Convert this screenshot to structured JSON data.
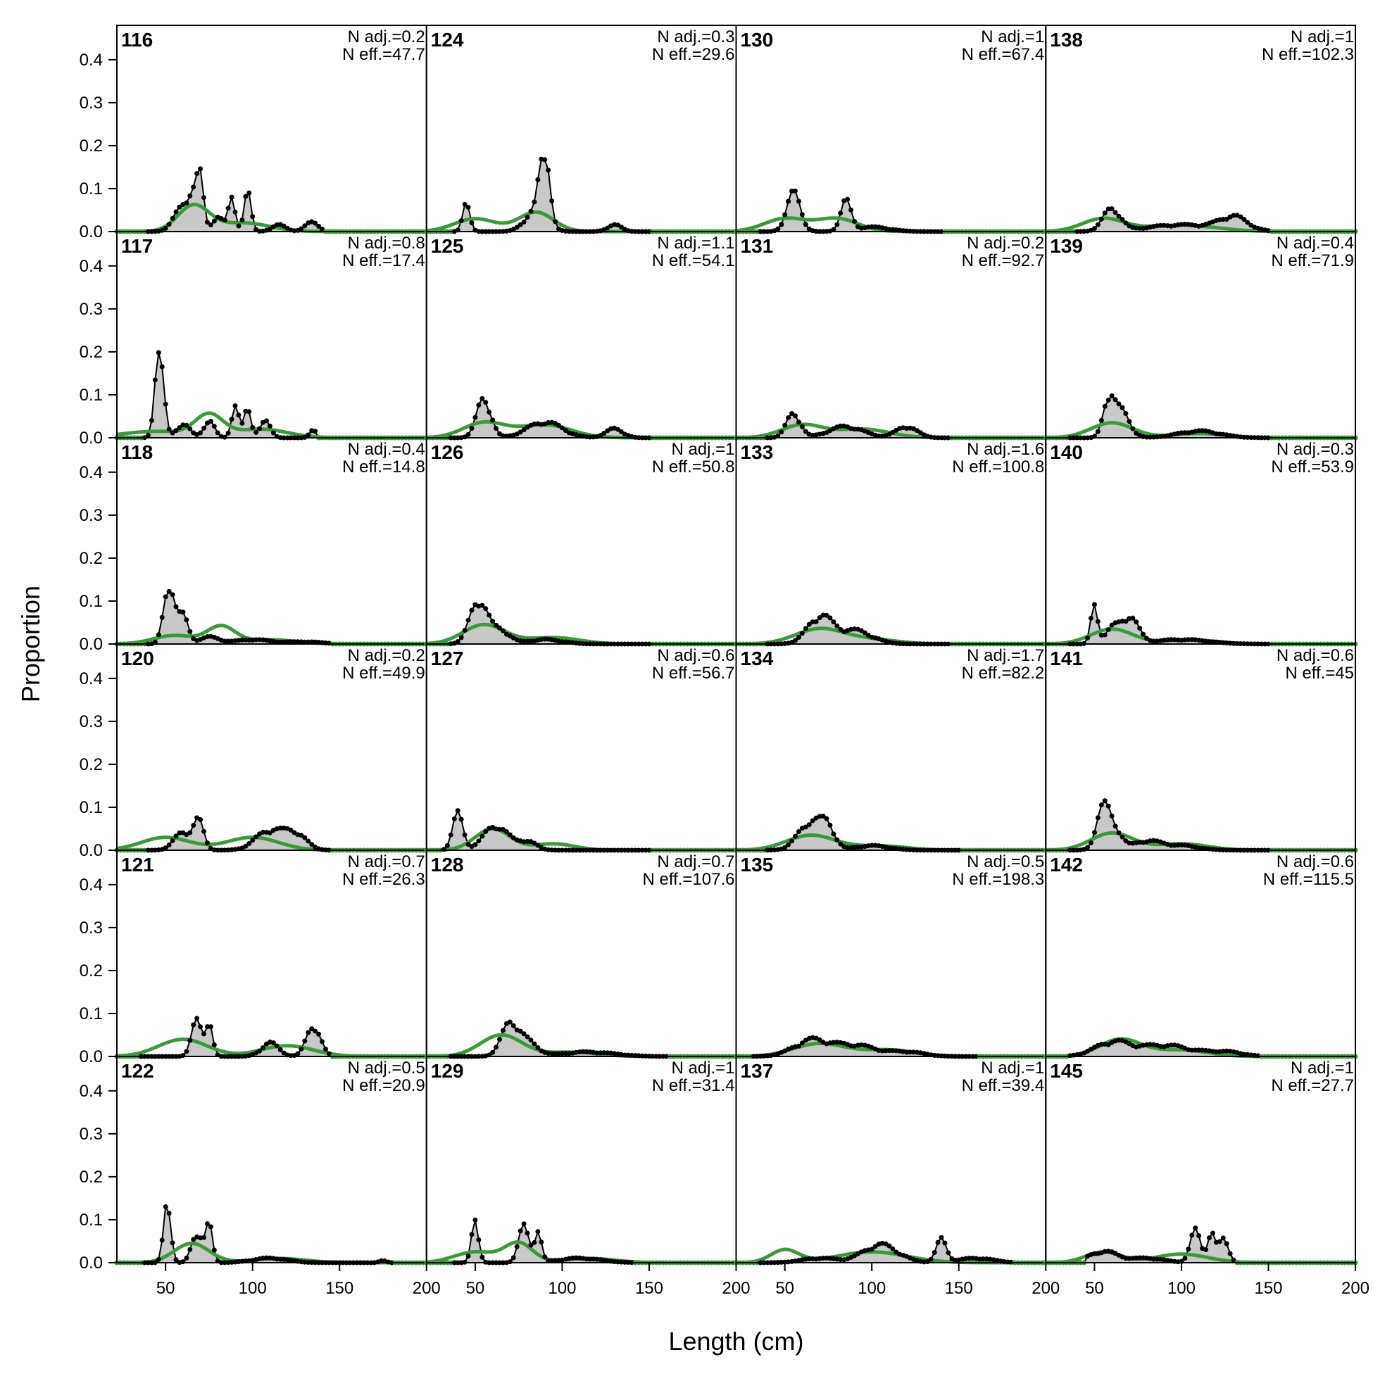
{
  "colors": {
    "observed_fill": "#c8c8c8",
    "observed_line": "#000000",
    "expected_line": "#3a9a3a",
    "zero_line": "#b4b4b4",
    "frame": "#000000"
  },
  "chart_data": {
    "type": "area",
    "description_of_series": [
      "observed",
      "expected"
    ],
    "xlabel": "Length (cm)",
    "ylabel": "Proportion",
    "xlim": [
      22,
      200
    ],
    "ylim": [
      0,
      0.48
    ],
    "x_ticks": [
      50,
      100,
      150,
      200
    ],
    "y_ticks": [
      0.0,
      0.1,
      0.2,
      0.3,
      0.4
    ],
    "x_tick_labels": [
      "50",
      "100",
      "150",
      "200"
    ],
    "y_tick_labels": [
      "0.0",
      "0.1",
      "0.2",
      "0.3",
      "0.4"
    ],
    "grid": false,
    "layout": {
      "columns": 4,
      "rows": 6,
      "order": "column-major"
    },
    "panels": [
      {
        "label": "116",
        "n_adj": "N adj.=0.2",
        "n_eff": "N eff.=47.7",
        "observed_peaks": [
          [
            60,
            0.055,
            5
          ],
          [
            66,
            0.06,
            3
          ],
          [
            70,
            0.095,
            2
          ],
          [
            80,
            0.035,
            3
          ],
          [
            88,
            0.07,
            2
          ],
          [
            97,
            0.095,
            2
          ],
          [
            115,
            0.015,
            4
          ],
          [
            134,
            0.02,
            4
          ]
        ],
        "observed_range": [
          40,
          140
        ],
        "expected_peaks": [
          [
            66,
            0.06,
            9
          ],
          [
            95,
            0.02,
            15
          ]
        ]
      },
      {
        "label": "117",
        "n_adj": "N adj.=0.8",
        "n_eff": "N eff.=17.4",
        "observed_peaks": [
          [
            45,
            0.14,
            2
          ],
          [
            48,
            0.1,
            2
          ],
          [
            60,
            0.03,
            4
          ],
          [
            75,
            0.04,
            3
          ],
          [
            90,
            0.08,
            2
          ],
          [
            97,
            0.06,
            2
          ],
          [
            107,
            0.04,
            3
          ],
          [
            135,
            0.02,
            2
          ]
        ],
        "observed_range": [
          38,
          136
        ],
        "expected_peaks": [
          [
            45,
            0.015,
            20
          ],
          [
            75,
            0.05,
            8
          ],
          [
            105,
            0.02,
            15
          ]
        ]
      },
      {
        "label": "118",
        "n_adj": "N adj.=0.4",
        "n_eff": "N eff.=14.8",
        "observed_peaks": [
          [
            52,
            0.14,
            3
          ],
          [
            60,
            0.06,
            3
          ],
          [
            75,
            0.015,
            6
          ],
          [
            100,
            0.01,
            10
          ],
          [
            130,
            0.005,
            10
          ]
        ],
        "observed_range": [
          40,
          145
        ],
        "expected_peaks": [
          [
            55,
            0.02,
            12
          ],
          [
            82,
            0.04,
            8
          ],
          [
            110,
            0.01,
            15
          ]
        ]
      },
      {
        "label": "120",
        "n_adj": "N adj.=0.2",
        "n_eff": "N eff.=49.9",
        "observed_peaks": [
          [
            60,
            0.04,
            5
          ],
          [
            69,
            0.06,
            3
          ],
          [
            110,
            0.045,
            8
          ],
          [
            125,
            0.035,
            6
          ]
        ],
        "observed_range": [
          40,
          145
        ],
        "expected_peaks": [
          [
            50,
            0.03,
            14
          ],
          [
            100,
            0.03,
            15
          ]
        ]
      },
      {
        "label": "121",
        "n_adj": "N adj.=0.7",
        "n_eff": "N eff.=26.3",
        "observed_peaks": [
          [
            68,
            0.08,
            3
          ],
          [
            75,
            0.075,
            2
          ],
          [
            110,
            0.03,
            5
          ],
          [
            135,
            0.07,
            4
          ]
        ],
        "observed_range": [
          36,
          145
        ],
        "expected_peaks": [
          [
            60,
            0.04,
            14
          ],
          [
            120,
            0.025,
            15
          ]
        ]
      },
      {
        "label": "122",
        "n_adj": "N adj.=0.5",
        "n_eff": "N eff.=20.9",
        "observed_peaks": [
          [
            51,
            0.15,
            2
          ],
          [
            68,
            0.07,
            3
          ],
          [
            75,
            0.08,
            2
          ],
          [
            110,
            0.01,
            10
          ],
          [
            175,
            0.005,
            2
          ]
        ],
        "observed_range": [
          38,
          180
        ],
        "expected_peaks": [
          [
            65,
            0.045,
            10
          ],
          [
            115,
            0.01,
            15
          ]
        ]
      },
      {
        "label": "124",
        "n_adj": "N adj.=0.3",
        "n_eff": "N eff.=29.6",
        "observed_peaks": [
          [
            45,
            0.07,
            2
          ],
          [
            85,
            0.05,
            6
          ],
          [
            88,
            0.09,
            2
          ],
          [
            92,
            0.11,
            2
          ],
          [
            130,
            0.015,
            4
          ]
        ],
        "observed_range": [
          38,
          150
        ],
        "expected_peaks": [
          [
            50,
            0.03,
            12
          ],
          [
            85,
            0.045,
            10
          ]
        ]
      },
      {
        "label": "125",
        "n_adj": "N adj.=1.1",
        "n_eff": "N eff.=54.1",
        "observed_peaks": [
          [
            55,
            0.09,
            4
          ],
          [
            90,
            0.035,
            10
          ],
          [
            130,
            0.02,
            5
          ]
        ],
        "observed_range": [
          35,
          150
        ],
        "expected_peaks": [
          [
            55,
            0.035,
            12
          ],
          [
            90,
            0.03,
            15
          ]
        ]
      },
      {
        "label": "126",
        "n_adj": "N adj.=1",
        "n_eff": "N eff.=50.8",
        "observed_peaks": [
          [
            52,
            0.1,
            5
          ],
          [
            65,
            0.03,
            5
          ],
          [
            90,
            0.01,
            10
          ]
        ],
        "observed_range": [
          35,
          150
        ],
        "expected_peaks": [
          [
            55,
            0.045,
            12
          ],
          [
            95,
            0.015,
            15
          ]
        ]
      },
      {
        "label": "127",
        "n_adj": "N adj.=0.6",
        "n_eff": "N eff.=56.7",
        "observed_peaks": [
          [
            40,
            0.08,
            3
          ],
          [
            62,
            0.055,
            7
          ],
          [
            80,
            0.02,
            5
          ]
        ],
        "observed_range": [
          32,
          150
        ],
        "expected_peaks": [
          [
            60,
            0.05,
            10
          ],
          [
            95,
            0.015,
            12
          ]
        ]
      },
      {
        "label": "128",
        "n_adj": "N adj.=0.7",
        "n_eff": "N eff.=107.6",
        "observed_peaks": [
          [
            70,
            0.07,
            5
          ],
          [
            80,
            0.03,
            6
          ],
          [
            115,
            0.01,
            15
          ]
        ],
        "observed_range": [
          35,
          160
        ],
        "expected_peaks": [
          [
            65,
            0.05,
            12
          ],
          [
            105,
            0.01,
            15
          ]
        ]
      },
      {
        "label": "129",
        "n_adj": "N adj.=1",
        "n_eff": "N eff.=31.4",
        "observed_peaks": [
          [
            50,
            0.1,
            2
          ],
          [
            78,
            0.08,
            3
          ],
          [
            86,
            0.07,
            2
          ],
          [
            110,
            0.01,
            12
          ]
        ],
        "observed_range": [
          38,
          140
        ],
        "expected_peaks": [
          [
            50,
            0.025,
            12
          ],
          [
            75,
            0.045,
            8
          ],
          [
            115,
            0.01,
            15
          ]
        ]
      },
      {
        "label": "130",
        "n_adj": "N adj.=1",
        "n_eff": "N eff.=67.4",
        "observed_peaks": [
          [
            55,
            0.085,
            4
          ],
          [
            85,
            0.065,
            3
          ],
          [
            100,
            0.01,
            10
          ]
        ],
        "observed_range": [
          35,
          140
        ],
        "expected_peaks": [
          [
            50,
            0.03,
            12
          ],
          [
            80,
            0.03,
            12
          ]
        ]
      },
      {
        "label": "131",
        "n_adj": "N adj.=0.2",
        "n_eff": "N eff.=92.7",
        "observed_peaks": [
          [
            55,
            0.055,
            4
          ],
          [
            85,
            0.025,
            10
          ],
          [
            120,
            0.025,
            6
          ]
        ],
        "observed_range": [
          40,
          145
        ],
        "expected_peaks": [
          [
            60,
            0.03,
            12
          ],
          [
            95,
            0.02,
            15
          ]
        ]
      },
      {
        "label": "133",
        "n_adj": "N adj.=1.6",
        "n_eff": "N eff.=100.8",
        "observed_peaks": [
          [
            70,
            0.06,
            7
          ],
          [
            90,
            0.03,
            10
          ]
        ],
        "observed_range": [
          40,
          145
        ],
        "expected_peaks": [
          [
            70,
            0.035,
            14
          ],
          [
            100,
            0.01,
            15
          ]
        ]
      },
      {
        "label": "134",
        "n_adj": "N adj.=1.7",
        "n_eff": "N eff.=82.2",
        "observed_peaks": [
          [
            65,
            0.065,
            7
          ],
          [
            75,
            0.04,
            4
          ],
          [
            100,
            0.01,
            10
          ]
        ],
        "observed_range": [
          40,
          150
        ],
        "expected_peaks": [
          [
            65,
            0.035,
            14
          ],
          [
            105,
            0.01,
            15
          ]
        ]
      },
      {
        "label": "135",
        "n_adj": "N adj.=0.5",
        "n_eff": "N eff.=198.3",
        "observed_peaks": [
          [
            65,
            0.035,
            10
          ],
          [
            90,
            0.025,
            12
          ],
          [
            120,
            0.01,
            10
          ]
        ],
        "observed_range": [
          32,
          160
        ],
        "expected_peaks": [
          [
            70,
            0.03,
            15
          ],
          [
            110,
            0.015,
            15
          ]
        ]
      },
      {
        "label": "137",
        "n_adj": "N adj.=1",
        "n_eff": "N eff.=39.4",
        "observed_peaks": [
          [
            70,
            0.01,
            10
          ],
          [
            105,
            0.04,
            10
          ],
          [
            140,
            0.05,
            3
          ],
          [
            160,
            0.01,
            10
          ]
        ],
        "observed_range": [
          35,
          180
        ],
        "expected_peaks": [
          [
            50,
            0.03,
            8
          ],
          [
            100,
            0.025,
            20
          ]
        ]
      },
      {
        "label": "138",
        "n_adj": "N adj.=1",
        "n_eff": "N eff.=102.3",
        "observed_peaks": [
          [
            60,
            0.05,
            5
          ],
          [
            100,
            0.015,
            20
          ],
          [
            130,
            0.03,
            8
          ]
        ],
        "observed_range": [
          40,
          150
        ],
        "expected_peaks": [
          [
            55,
            0.03,
            12
          ],
          [
            100,
            0.015,
            20
          ]
        ]
      },
      {
        "label": "139",
        "n_adj": "N adj.=0.4",
        "n_eff": "N eff.=71.9",
        "observed_peaks": [
          [
            58,
            0.08,
            3
          ],
          [
            65,
            0.06,
            5
          ],
          [
            110,
            0.015,
            12
          ]
        ],
        "observed_range": [
          35,
          150
        ],
        "expected_peaks": [
          [
            60,
            0.035,
            12
          ],
          [
            110,
            0.01,
            15
          ]
        ]
      },
      {
        "label": "140",
        "n_adj": "N adj.=0.3",
        "n_eff": "N eff.=53.9",
        "observed_peaks": [
          [
            50,
            0.09,
            2
          ],
          [
            60,
            0.03,
            4
          ],
          [
            70,
            0.06,
            5
          ],
          [
            100,
            0.01,
            15
          ]
        ],
        "observed_range": [
          35,
          150
        ],
        "expected_peaks": [
          [
            60,
            0.035,
            12
          ],
          [
            105,
            0.01,
            15
          ]
        ]
      },
      {
        "label": "141",
        "n_adj": "N adj.=0.6",
        "n_eff": "N eff.=45",
        "observed_peaks": [
          [
            55,
            0.09,
            4
          ],
          [
            62,
            0.04,
            4
          ],
          [
            80,
            0.02,
            8
          ],
          [
            100,
            0.01,
            10
          ]
        ],
        "observed_range": [
          35,
          150
        ],
        "expected_peaks": [
          [
            60,
            0.04,
            12
          ],
          [
            100,
            0.015,
            15
          ]
        ]
      },
      {
        "label": "142",
        "n_adj": "N adj.=0.6",
        "n_eff": "N eff.=115.5",
        "observed_peaks": [
          [
            60,
            0.03,
            10
          ],
          [
            90,
            0.025,
            15
          ],
          [
            125,
            0.01,
            10
          ]
        ],
        "observed_range": [
          35,
          145
        ],
        "expected_peaks": [
          [
            65,
            0.04,
            12
          ],
          [
            100,
            0.015,
            15
          ]
        ]
      },
      {
        "label": "145",
        "n_adj": "N adj.=1",
        "n_eff": "N eff.=27.7",
        "observed_peaks": [
          [
            55,
            0.025,
            8
          ],
          [
            80,
            0.01,
            10
          ],
          [
            108,
            0.07,
            3
          ],
          [
            117,
            0.07,
            2
          ],
          [
            124,
            0.05,
            3
          ]
        ],
        "observed_range": [
          45,
          130
        ],
        "expected_peaks": [
          [
            55,
            0.025,
            10
          ],
          [
            100,
            0.02,
            15
          ]
        ]
      }
    ]
  }
}
